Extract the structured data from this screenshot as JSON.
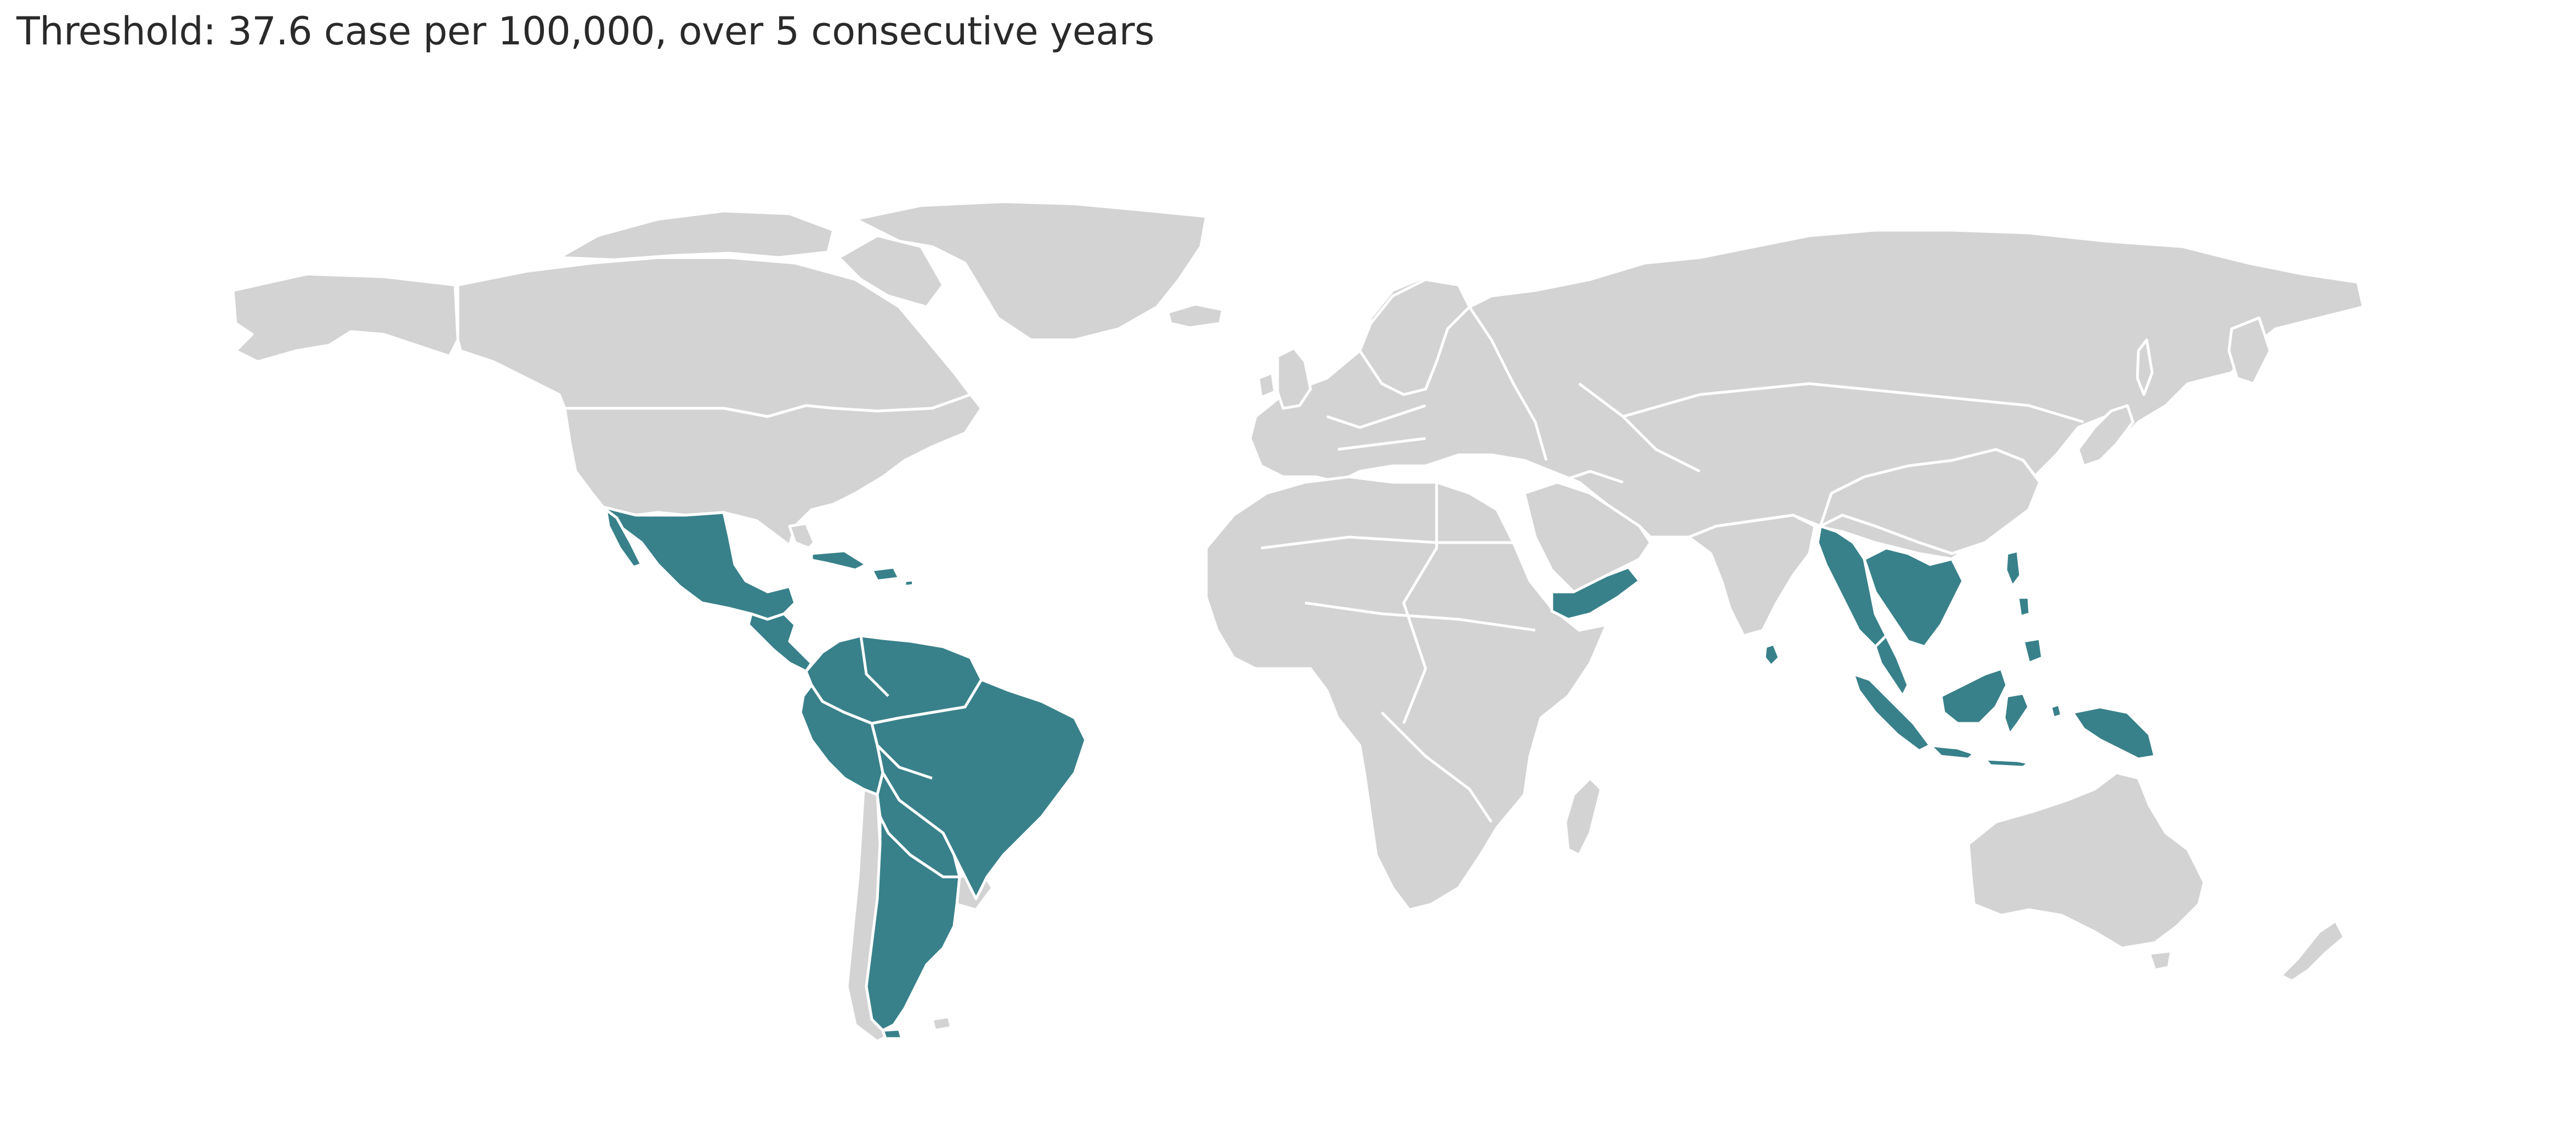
{
  "title": "Threshold: 37.6 case per 100,000, over 5 consecutive years",
  "legend": {
    "highlight_color": "#38818a",
    "base_color": "#d3d3d3",
    "border_color": "#ffffff"
  },
  "highlighted_regions": [
    "Mexico",
    "Cuba",
    "Dominican Republic",
    "Puerto Rico",
    "Guatemala",
    "Honduras",
    "El Salvador",
    "Nicaragua",
    "Costa Rica",
    "Panama",
    "Colombia",
    "Venezuela",
    "Guyana",
    "Suriname",
    "French Guiana",
    "Ecuador",
    "Peru",
    "Brazil",
    "Bolivia",
    "Paraguay",
    "Argentina",
    "Yemen",
    "Sri Lanka",
    "Myanmar",
    "Thailand",
    "Laos",
    "Cambodia",
    "Vietnam",
    "Malaysia",
    "Indonesia",
    "Philippines",
    "Timor-Leste",
    "Papua New Guinea"
  ]
}
